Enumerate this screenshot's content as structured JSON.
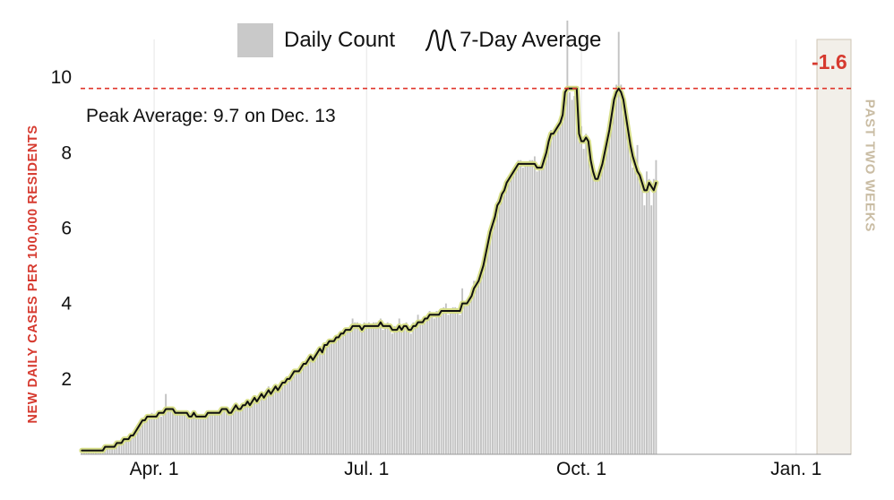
{
  "legend": {
    "bar_label": "Daily Count",
    "line_label": "7-Day Average"
  },
  "ylabel": "NEW DAILY CASES PER 100,000 RESIDENTS",
  "recent_label": "PAST TWO WEEKS",
  "recent_change": "-1.6",
  "peak_annotation": "Peak Average: 9.7 on Dec. 13",
  "colors": {
    "bars": "#c2c2c2",
    "bars_recent": "#a9a9a9",
    "avg_line": "#111111",
    "avg_halo": "#d8df8a",
    "peak_line": "#e0352b",
    "recent_band": "#f2efe9",
    "recent_border": "#cfc6b4",
    "grid": "#e6e6e6"
  },
  "chart_data": {
    "type": "bar",
    "title": "",
    "xlabel": "",
    "ylabel": "NEW DAILY CASES PER 100,000 RESIDENTS",
    "x_start": "2020-03-01",
    "x_end": "2021-01-24",
    "ylim": [
      0,
      11
    ],
    "y_ticks": [
      2,
      4,
      6,
      8,
      10
    ],
    "x_ticks": [
      {
        "date": "2020-04-01",
        "label": "Apr. 1"
      },
      {
        "date": "2020-07-01",
        "label": "Jul. 1"
      },
      {
        "date": "2020-10-01",
        "label": "Oct. 1"
      },
      {
        "date": "2021-01-01",
        "label": "Jan. 1"
      }
    ],
    "grid": "vertical at x ticks",
    "legend_position": "top-center",
    "peak_reference": {
      "value": 9.7,
      "date": "2020-12-13"
    },
    "recent_period": {
      "start": "2021-01-11",
      "end": "2021-01-24",
      "change": -1.6
    },
    "series": [
      {
        "name": "Daily Count",
        "kind": "bar",
        "values": [
          0.1,
          0.1,
          0.1,
          0.1,
          0.1,
          0.1,
          0.1,
          0.1,
          0.1,
          0.1,
          0.2,
          0.2,
          0.2,
          0.2,
          0.2,
          0.3,
          0.3,
          0.3,
          0.4,
          0.4,
          0.4,
          0.5,
          0.5,
          0.6,
          0.7,
          0.8,
          0.9,
          0.9,
          1.0,
          1.0,
          1.1,
          1.0,
          1.0,
          1.1,
          1.0,
          1.1,
          1.6,
          1.2,
          1.2,
          1.2,
          1.1,
          1.1,
          1.1,
          1.1,
          1.1,
          1.1,
          1.0,
          1.0,
          1.1,
          1.0,
          1.0,
          1.0,
          1.0,
          1.0,
          1.1,
          1.1,
          1.1,
          1.1,
          1.1,
          1.1,
          1.2,
          1.2,
          1.2,
          1.1,
          1.1,
          1.2,
          1.3,
          1.2,
          1.2,
          1.3,
          1.3,
          1.4,
          1.3,
          1.4,
          1.5,
          1.4,
          1.5,
          1.6,
          1.5,
          1.7,
          1.8,
          1.6,
          1.7,
          1.8,
          1.7,
          1.8,
          1.9,
          1.9,
          2.0,
          2.0,
          2.1,
          2.2,
          2.2,
          2.2,
          2.3,
          2.4,
          2.4,
          2.5,
          2.6,
          2.5,
          2.6,
          2.7,
          2.8,
          2.7,
          2.9,
          2.9,
          3.0,
          3.0,
          3.0,
          3.1,
          3.1,
          3.2,
          3.2,
          3.3,
          3.3,
          3.3,
          3.6,
          3.5,
          3.5,
          3.4,
          3.3,
          3.5,
          3.4,
          3.5,
          3.4,
          3.5,
          3.5,
          3.4,
          3.6,
          3.3,
          3.4,
          3.5,
          3.4,
          3.2,
          3.4,
          3.3,
          3.6,
          3.3,
          3.4,
          3.5,
          3.3,
          3.2,
          3.5,
          3.4,
          3.7,
          3.5,
          3.5,
          3.6,
          3.6,
          3.8,
          3.7,
          3.6,
          3.8,
          3.7,
          3.8,
          3.9,
          4.0,
          3.7,
          3.8,
          3.9,
          3.9,
          3.8,
          3.7,
          4.4,
          4.0,
          4.0,
          4.2,
          4.3,
          4.6,
          4.5,
          4.7,
          4.8,
          5.1,
          5.4,
          5.7,
          5.9,
          6.1,
          6.3,
          6.6,
          6.7,
          6.9,
          7.0,
          7.3,
          7.4,
          7.4,
          7.6,
          7.7,
          7.8,
          7.8,
          7.6,
          7.7,
          7.7,
          7.8,
          7.8,
          7.9,
          7.5,
          7.6,
          7.6,
          7.9,
          8.1,
          8.4,
          8.6,
          8.5,
          8.6,
          8.7,
          8.9,
          9.0,
          9.6,
          11.5,
          9.6,
          9.4,
          9.5,
          9.3,
          8.4,
          8.7,
          8.1,
          8.5,
          8.3,
          7.8,
          7.5,
          7.5,
          7.3,
          7.5,
          7.7,
          8.0,
          8.3,
          8.6,
          9.0,
          9.4,
          9.8,
          11.2,
          9.8,
          9.5,
          9.0,
          8.6,
          8.0,
          7.6,
          7.7,
          8.2,
          7.4,
          7.2,
          6.6,
          7.5,
          7.3,
          6.6,
          7.3,
          7.8
        ],
        "color": "#c2c2c2"
      },
      {
        "name": "7-Day Average",
        "kind": "line",
        "values": [
          0.1,
          0.1,
          0.1,
          0.1,
          0.1,
          0.1,
          0.1,
          0.1,
          0.1,
          0.1,
          0.2,
          0.2,
          0.2,
          0.2,
          0.2,
          0.3,
          0.3,
          0.3,
          0.4,
          0.4,
          0.4,
          0.5,
          0.5,
          0.6,
          0.7,
          0.8,
          0.9,
          0.9,
          1.0,
          1.0,
          1.0,
          1.0,
          1.0,
          1.1,
          1.1,
          1.1,
          1.2,
          1.2,
          1.2,
          1.2,
          1.1,
          1.1,
          1.1,
          1.1,
          1.1,
          1.1,
          1.0,
          1.0,
          1.1,
          1.0,
          1.0,
          1.0,
          1.0,
          1.0,
          1.1,
          1.1,
          1.1,
          1.1,
          1.1,
          1.1,
          1.2,
          1.2,
          1.2,
          1.1,
          1.1,
          1.2,
          1.3,
          1.2,
          1.2,
          1.3,
          1.3,
          1.4,
          1.3,
          1.4,
          1.5,
          1.4,
          1.5,
          1.6,
          1.5,
          1.6,
          1.7,
          1.6,
          1.7,
          1.8,
          1.7,
          1.8,
          1.9,
          1.9,
          2.0,
          2.0,
          2.1,
          2.2,
          2.2,
          2.2,
          2.3,
          2.4,
          2.4,
          2.5,
          2.6,
          2.5,
          2.6,
          2.7,
          2.8,
          2.7,
          2.9,
          2.9,
          3.0,
          3.0,
          3.0,
          3.1,
          3.1,
          3.2,
          3.2,
          3.3,
          3.3,
          3.3,
          3.4,
          3.4,
          3.4,
          3.4,
          3.3,
          3.4,
          3.4,
          3.4,
          3.4,
          3.4,
          3.4,
          3.4,
          3.5,
          3.4,
          3.4,
          3.4,
          3.4,
          3.3,
          3.3,
          3.3,
          3.4,
          3.3,
          3.4,
          3.4,
          3.3,
          3.3,
          3.4,
          3.4,
          3.5,
          3.5,
          3.5,
          3.6,
          3.6,
          3.7,
          3.7,
          3.7,
          3.7,
          3.7,
          3.8,
          3.8,
          3.8,
          3.8,
          3.8,
          3.8,
          3.8,
          3.8,
          3.8,
          4.0,
          4.0,
          4.0,
          4.1,
          4.2,
          4.4,
          4.5,
          4.6,
          4.8,
          5.0,
          5.3,
          5.6,
          5.9,
          6.1,
          6.3,
          6.6,
          6.7,
          6.9,
          7.0,
          7.2,
          7.3,
          7.4,
          7.5,
          7.6,
          7.7,
          7.7,
          7.7,
          7.7,
          7.7,
          7.7,
          7.7,
          7.7,
          7.6,
          7.6,
          7.6,
          7.8,
          8.0,
          8.3,
          8.5,
          8.5,
          8.6,
          8.7,
          8.8,
          9.0,
          9.6,
          9.7,
          9.7,
          9.7,
          9.7,
          9.7,
          8.5,
          8.3,
          8.3,
          8.4,
          8.3,
          7.8,
          7.5,
          7.3,
          7.3,
          7.5,
          7.7,
          8.0,
          8.3,
          8.6,
          9.0,
          9.4,
          9.6,
          9.7,
          9.6,
          9.4,
          9.0,
          8.6,
          8.2,
          7.9,
          7.7,
          7.5,
          7.4,
          7.2,
          7.0,
          7.0,
          7.2,
          7.1,
          7.0,
          7.2
        ],
        "color": "#111111"
      }
    ]
  }
}
